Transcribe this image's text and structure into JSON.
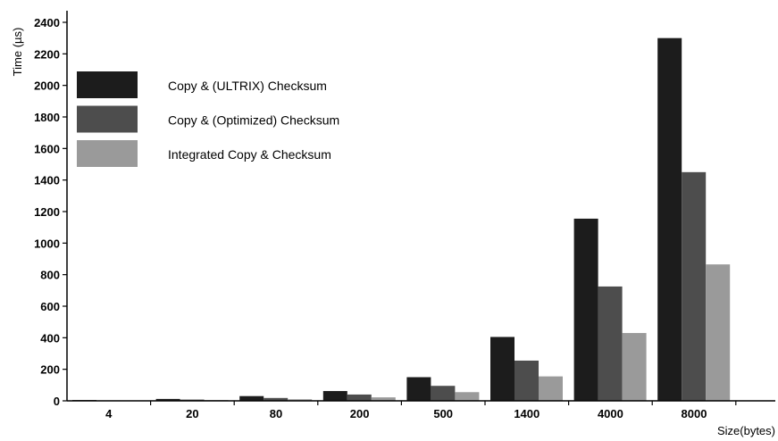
{
  "chart_data": {
    "type": "bar",
    "title": "",
    "xlabel": "Size(bytes)",
    "ylabel": "Time (µs)",
    "categories": [
      "4",
      "20",
      "80",
      "200",
      "500",
      "1400",
      "4000",
      "8000"
    ],
    "ylim": [
      0,
      2400
    ],
    "yticks": [
      0,
      200,
      400,
      600,
      800,
      1000,
      1200,
      1400,
      1600,
      1800,
      2000,
      2200,
      2400
    ],
    "grid": false,
    "legend_position": "top-left",
    "series": [
      {
        "name": "Copy & (ULTRIX) Checksum",
        "color": "#1c1c1c",
        "values": [
          5,
          12,
          30,
          62,
          150,
          405,
          1155,
          2300
        ]
      },
      {
        "name": "Copy & (Optimized) Checksum",
        "color": "#4d4d4d",
        "values": [
          3,
          8,
          18,
          40,
          95,
          255,
          725,
          1450
        ]
      },
      {
        "name": "Integrated Copy & Checksum",
        "color": "#9a9a9a",
        "values": [
          2,
          5,
          10,
          22,
          55,
          155,
          430,
          865
        ]
      }
    ]
  }
}
